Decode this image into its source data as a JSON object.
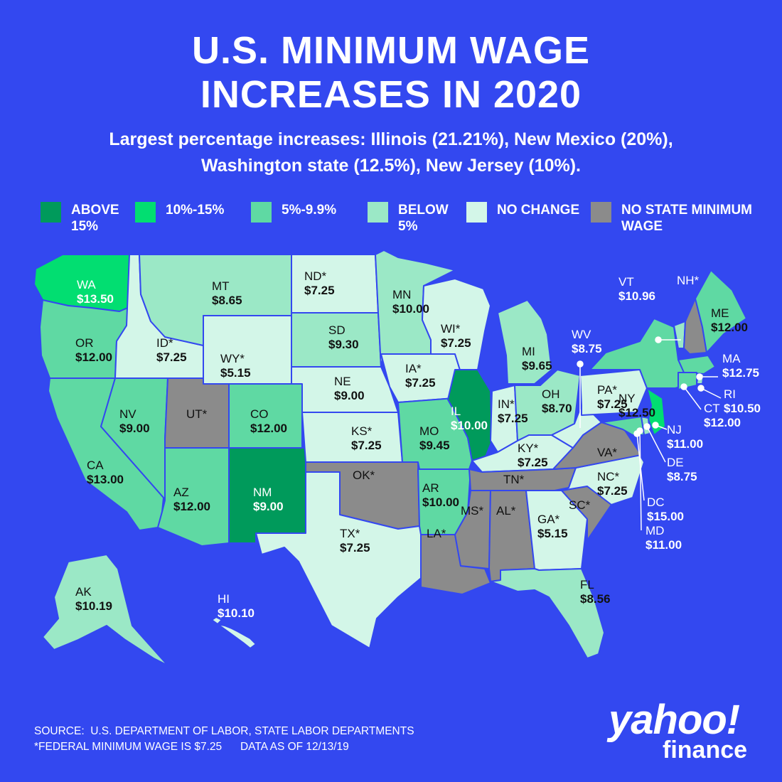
{
  "title": {
    "line1": "U.S. MINIMUM WAGE",
    "line2": "INCREASES IN 2020"
  },
  "subtitle": {
    "line1": "Largest percentage increases: Illinois (21.21%), New Mexico (20%),",
    "line2": "Washington state (12.5%), New Jersey (10%)."
  },
  "legend": [
    {
      "label": "ABOVE 15%",
      "color": "#009a5b"
    },
    {
      "label": "10%-15%",
      "color": "#02de71"
    },
    {
      "label": "5%-9.9%",
      "color": "#5fd9a3"
    },
    {
      "label": "BELOW 5%",
      "color": "#9be8c6"
    },
    {
      "label": "NO CHANGE",
      "color": "#d3f6e8"
    },
    {
      "label": "NO STATE MINIMUM WAGE",
      "color": "#8b8b8b"
    }
  ],
  "colors": {
    "background": "#3348f0",
    "text_dark": "#111111",
    "text_light": "#ffffff"
  },
  "states": [
    {
      "abbr": "WA",
      "wage": "$13.50",
      "category": "10%-15%"
    },
    {
      "abbr": "OR",
      "wage": "$12.00",
      "category": "5%-9.9%"
    },
    {
      "abbr": "CA",
      "wage": "$13.00",
      "category": "5%-9.9%"
    },
    {
      "abbr": "ID*",
      "wage": "$7.25",
      "category": "NO CHANGE"
    },
    {
      "abbr": "NV",
      "wage": "$9.00",
      "category": "5%-9.9%"
    },
    {
      "abbr": "MT",
      "wage": "$8.65",
      "category": "BELOW 5%"
    },
    {
      "abbr": "WY*",
      "wage": "$5.15",
      "category": "NO CHANGE"
    },
    {
      "abbr": "UT*",
      "wage": "",
      "category": "NO STATE MINIMUM WAGE"
    },
    {
      "abbr": "AZ",
      "wage": "$12.00",
      "category": "5%-9.9%"
    },
    {
      "abbr": "CO",
      "wage": "$12.00",
      "category": "5%-9.9%"
    },
    {
      "abbr": "NM",
      "wage": "$9.00",
      "category": "ABOVE 15%"
    },
    {
      "abbr": "ND*",
      "wage": "$7.25",
      "category": "NO CHANGE"
    },
    {
      "abbr": "SD",
      "wage": "$9.30",
      "category": "BELOW 5%"
    },
    {
      "abbr": "NE",
      "wage": "$9.00",
      "category": "NO CHANGE"
    },
    {
      "abbr": "KS*",
      "wage": "$7.25",
      "category": "NO CHANGE"
    },
    {
      "abbr": "OK*",
      "wage": "",
      "category": "NO STATE MINIMUM WAGE"
    },
    {
      "abbr": "TX*",
      "wage": "$7.25",
      "category": "NO CHANGE"
    },
    {
      "abbr": "MN",
      "wage": "$10.00",
      "category": "BELOW 5%"
    },
    {
      "abbr": "IA*",
      "wage": "$7.25",
      "category": "NO CHANGE"
    },
    {
      "abbr": "MO",
      "wage": "$9.45",
      "category": "5%-9.9%"
    },
    {
      "abbr": "AR",
      "wage": "$10.00",
      "category": "5%-9.9%"
    },
    {
      "abbr": "LA*",
      "wage": "",
      "category": "NO STATE MINIMUM WAGE"
    },
    {
      "abbr": "WI*",
      "wage": "$7.25",
      "category": "NO CHANGE"
    },
    {
      "abbr": "IL",
      "wage": "$10.00",
      "category": "ABOVE 15%"
    },
    {
      "abbr": "MI",
      "wage": "$9.65",
      "category": "BELOW 5%"
    },
    {
      "abbr": "IN*",
      "wage": "$7.25",
      "category": "NO CHANGE"
    },
    {
      "abbr": "OH",
      "wage": "$8.70",
      "category": "BELOW 5%"
    },
    {
      "abbr": "KY*",
      "wage": "$7.25",
      "category": "NO CHANGE"
    },
    {
      "abbr": "TN*",
      "wage": "",
      "category": "NO STATE MINIMUM WAGE"
    },
    {
      "abbr": "MS*",
      "wage": "",
      "category": "NO STATE MINIMUM WAGE"
    },
    {
      "abbr": "AL*",
      "wage": "",
      "category": "NO STATE MINIMUM WAGE"
    },
    {
      "abbr": "GA*",
      "wage": "$5.15",
      "category": "NO CHANGE"
    },
    {
      "abbr": "FL",
      "wage": "$8.56",
      "category": "BELOW 5%"
    },
    {
      "abbr": "SC*",
      "wage": "",
      "category": "NO STATE MINIMUM WAGE"
    },
    {
      "abbr": "NC*",
      "wage": "$7.25",
      "category": "NO CHANGE"
    },
    {
      "abbr": "VA*",
      "wage": "",
      "category": "NO STATE MINIMUM WAGE"
    },
    {
      "abbr": "WV",
      "wage": "$8.75",
      "category": "NO CHANGE"
    },
    {
      "abbr": "PA*",
      "wage": "$7.25",
      "category": "NO CHANGE"
    },
    {
      "abbr": "NY",
      "wage": "$12.50",
      "category": "5%-9.9%"
    },
    {
      "abbr": "VT",
      "wage": "$10.96",
      "category": "BELOW 5%"
    },
    {
      "abbr": "NH*",
      "wage": "",
      "category": "NO STATE MINIMUM WAGE"
    },
    {
      "abbr": "ME",
      "wage": "$12.00",
      "category": "5%-9.9%"
    },
    {
      "abbr": "MA",
      "wage": "$12.75",
      "category": "5%-9.9%"
    },
    {
      "abbr": "RI",
      "wage": "$10.50",
      "category": "BELOW 5%"
    },
    {
      "abbr": "CT",
      "wage": "$12.00",
      "category": "5%-9.9%"
    },
    {
      "abbr": "NJ",
      "wage": "$11.00",
      "category": "10%-15%"
    },
    {
      "abbr": "DE",
      "wage": "$8.75",
      "category": "BELOW 5%"
    },
    {
      "abbr": "DC",
      "wage": "$15.00",
      "category": "5%-9.9%"
    },
    {
      "abbr": "MD",
      "wage": "$11.00",
      "category": "5%-9.9%"
    },
    {
      "abbr": "AK",
      "wage": "$10.19",
      "category": "BELOW 5%"
    },
    {
      "abbr": "HI",
      "wage": "$10.10",
      "category": "NO CHANGE"
    }
  ],
  "source": {
    "line1": "SOURCE:  U.S. DEPARTMENT OF LABOR, STATE LABOR DEPARTMENTS",
    "line2": "*FEDERAL MINIMUM WAGE IS $7.25      DATA AS OF 12/13/19"
  },
  "logo": {
    "main": "yahoo!",
    "sub": "finance"
  }
}
